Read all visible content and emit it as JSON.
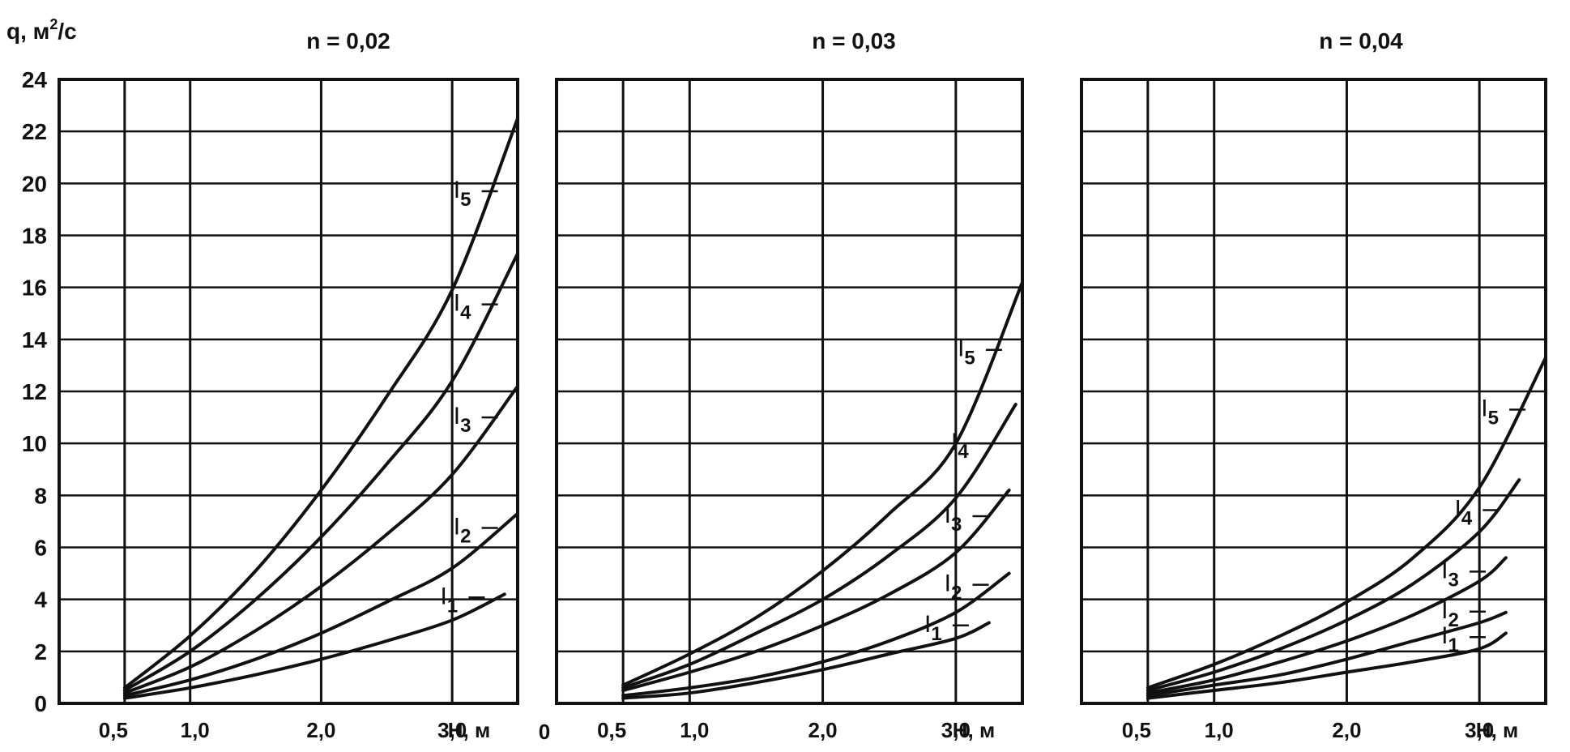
{
  "y_axis_label": "q, м²/с",
  "x_axis_label": "H, м",
  "origin_label": "0",
  "chart_data": [
    {
      "type": "line",
      "title": "n = 0,02",
      "xlabel": "H, м",
      "ylabel": "q, м²/с",
      "xlim": [
        0.0,
        3.5
      ],
      "ylim": [
        0,
        24
      ],
      "x_ticks": [
        "0,5",
        "1,0",
        "2,0",
        "3,0"
      ],
      "y_ticks": [
        "0",
        "2",
        "4",
        "6",
        "8",
        "10",
        "12",
        "14",
        "16",
        "18",
        "20",
        "22",
        "24"
      ],
      "grid": true,
      "series": [
        {
          "name": "I5",
          "x": [
            0.5,
            1.0,
            1.5,
            2.0,
            2.5,
            3.0,
            3.5
          ],
          "y": [
            0.6,
            2.6,
            5.1,
            8.2,
            11.8,
            15.9,
            22.5
          ]
        },
        {
          "name": "I4",
          "x": [
            0.5,
            1.0,
            1.5,
            2.0,
            2.5,
            3.0,
            3.5
          ],
          "y": [
            0.5,
            2.0,
            4.0,
            6.4,
            9.2,
            12.4,
            17.3
          ]
        },
        {
          "name": "I3",
          "x": [
            0.5,
            1.0,
            1.5,
            2.0,
            2.5,
            3.0,
            3.5
          ],
          "y": [
            0.4,
            1.4,
            2.8,
            4.5,
            6.5,
            8.8,
            12.2
          ]
        },
        {
          "name": "I2",
          "x": [
            0.5,
            1.0,
            1.5,
            2.0,
            2.5,
            3.0,
            3.5
          ],
          "y": [
            0.3,
            0.9,
            1.7,
            2.7,
            3.9,
            5.2,
            7.3
          ]
        },
        {
          "name": "I1",
          "x": [
            0.5,
            1.0,
            1.5,
            2.0,
            2.5,
            3.0,
            3.4
          ],
          "y": [
            0.2,
            0.6,
            1.1,
            1.7,
            2.4,
            3.2,
            4.2
          ]
        }
      ]
    },
    {
      "type": "line",
      "title": "n = 0,03",
      "xlabel": "H, м",
      "ylabel": "q, м²/с",
      "xlim": [
        0.0,
        3.5
      ],
      "ylim": [
        0,
        24
      ],
      "x_ticks": [
        "0,5",
        "1,0",
        "2,0",
        "3,0"
      ],
      "grid": true,
      "series": [
        {
          "name": "I5",
          "x": [
            0.5,
            1.0,
            1.5,
            2.0,
            2.5,
            3.0,
            3.5
          ],
          "y": [
            0.7,
            1.9,
            3.3,
            5.1,
            7.3,
            10.0,
            16.2
          ]
        },
        {
          "name": "I4",
          "x": [
            0.5,
            1.0,
            1.5,
            2.0,
            2.5,
            3.0,
            3.45
          ],
          "y": [
            0.6,
            1.5,
            2.7,
            4.0,
            5.7,
            7.9,
            11.5
          ]
        },
        {
          "name": "I3",
          "x": [
            0.5,
            1.0,
            1.5,
            2.0,
            2.5,
            3.0,
            3.4
          ],
          "y": [
            0.5,
            1.2,
            2.0,
            3.0,
            4.2,
            5.8,
            8.2
          ]
        },
        {
          "name": "I2",
          "x": [
            0.5,
            1.0,
            1.5,
            2.0,
            2.5,
            3.0,
            3.4
          ],
          "y": [
            0.3,
            0.6,
            1.0,
            1.6,
            2.4,
            3.5,
            5.0
          ]
        },
        {
          "name": "I1",
          "x": [
            0.5,
            1.0,
            1.5,
            2.0,
            2.5,
            3.0,
            3.25
          ],
          "y": [
            0.2,
            0.4,
            0.8,
            1.3,
            1.9,
            2.5,
            3.1
          ]
        }
      ]
    },
    {
      "type": "line",
      "title": "n = 0,04",
      "xlabel": "H, м",
      "ylabel": "q, м²/с",
      "xlim": [
        0.0,
        3.5
      ],
      "ylim": [
        0,
        24
      ],
      "x_ticks": [
        "0,5",
        "1,0",
        "2,0",
        "3,0"
      ],
      "grid": true,
      "series": [
        {
          "name": "I5",
          "x": [
            0.5,
            1.0,
            1.5,
            2.0,
            2.5,
            3.0,
            3.5
          ],
          "y": [
            0.6,
            1.5,
            2.6,
            3.9,
            5.6,
            8.3,
            13.3
          ]
        },
        {
          "name": "I4",
          "x": [
            0.5,
            1.0,
            1.5,
            2.0,
            2.5,
            3.0,
            3.3
          ],
          "y": [
            0.5,
            1.2,
            2.1,
            3.2,
            4.6,
            6.6,
            8.6
          ]
        },
        {
          "name": "I3",
          "x": [
            0.5,
            1.0,
            1.5,
            2.0,
            2.5,
            3.0,
            3.2
          ],
          "y": [
            0.4,
            0.9,
            1.6,
            2.4,
            3.4,
            4.7,
            5.6
          ]
        },
        {
          "name": "I2",
          "x": [
            0.5,
            1.0,
            1.5,
            2.0,
            2.5,
            3.0,
            3.2
          ],
          "y": [
            0.3,
            0.7,
            1.1,
            1.7,
            2.4,
            3.1,
            3.5
          ]
        },
        {
          "name": "I1",
          "x": [
            0.5,
            1.0,
            1.5,
            2.0,
            2.5,
            3.0,
            3.2
          ],
          "y": [
            0.2,
            0.5,
            0.8,
            1.2,
            1.6,
            2.1,
            2.7
          ]
        }
      ]
    }
  ]
}
